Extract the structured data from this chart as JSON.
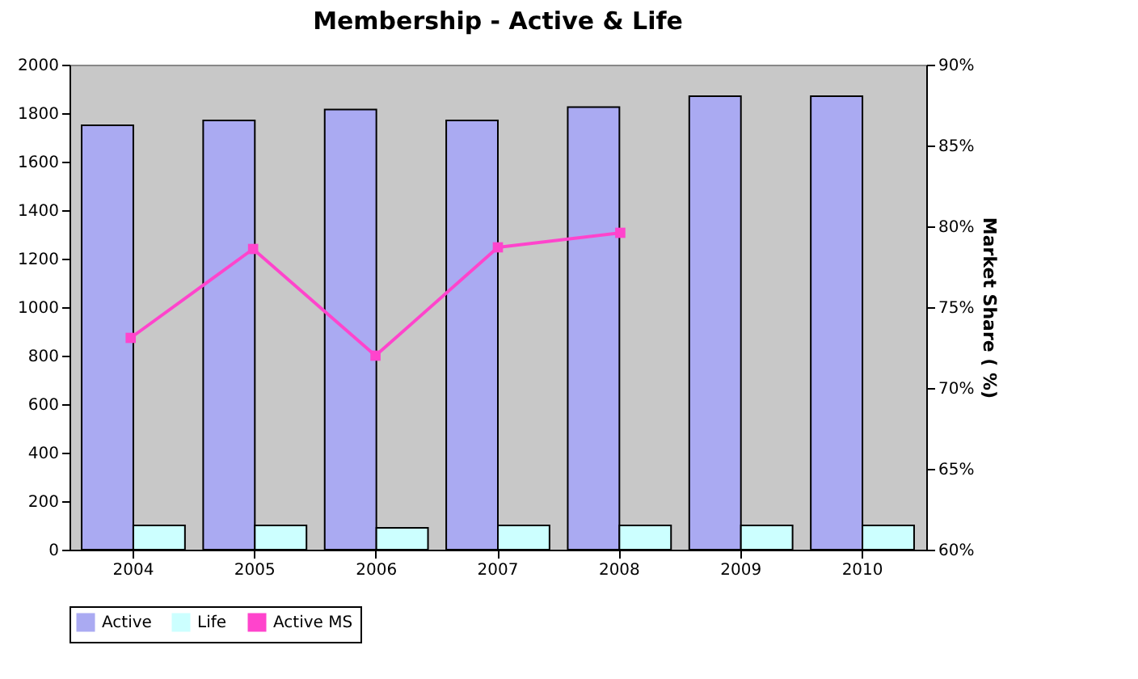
{
  "chart_data": {
    "type": "bar",
    "title": "Membership - Active & Life",
    "y2label": "Market Share ( %)",
    "categories": [
      "2004",
      "2005",
      "2006",
      "2007",
      "2008",
      "2009",
      "2010"
    ],
    "series": [
      {
        "name": "Active",
        "color": "#aaaaf2",
        "values": [
          1750,
          1770,
          1815,
          1770,
          1825,
          1870,
          1870
        ]
      },
      {
        "name": "Life",
        "color": "#ccffff",
        "values": [
          100,
          100,
          90,
          100,
          100,
          100,
          100
        ]
      },
      {
        "name": "Active MS",
        "type": "line",
        "axis": "y2",
        "color": "#ff44cc",
        "values": [
          73.1,
          78.6,
          72,
          78.7,
          79.6,
          null,
          null
        ]
      }
    ],
    "ylim": [
      0,
      2000
    ],
    "yticks": [
      0,
      200,
      400,
      600,
      800,
      1000,
      1200,
      1400,
      1600,
      1800,
      2000
    ],
    "y2lim": [
      60,
      90
    ],
    "y2ticks": [
      {
        "value": 60,
        "label": "60%"
      },
      {
        "value": 65,
        "label": "65%"
      },
      {
        "value": 70,
        "label": "70%"
      },
      {
        "value": 75,
        "label": "75%"
      },
      {
        "value": 80,
        "label": "80%"
      },
      {
        "value": 85,
        "label": "85%"
      },
      {
        "value": 90,
        "label": "90%"
      }
    ],
    "grid": false,
    "legend": "bottom",
    "marker": "square",
    "line_style": "solid"
  }
}
